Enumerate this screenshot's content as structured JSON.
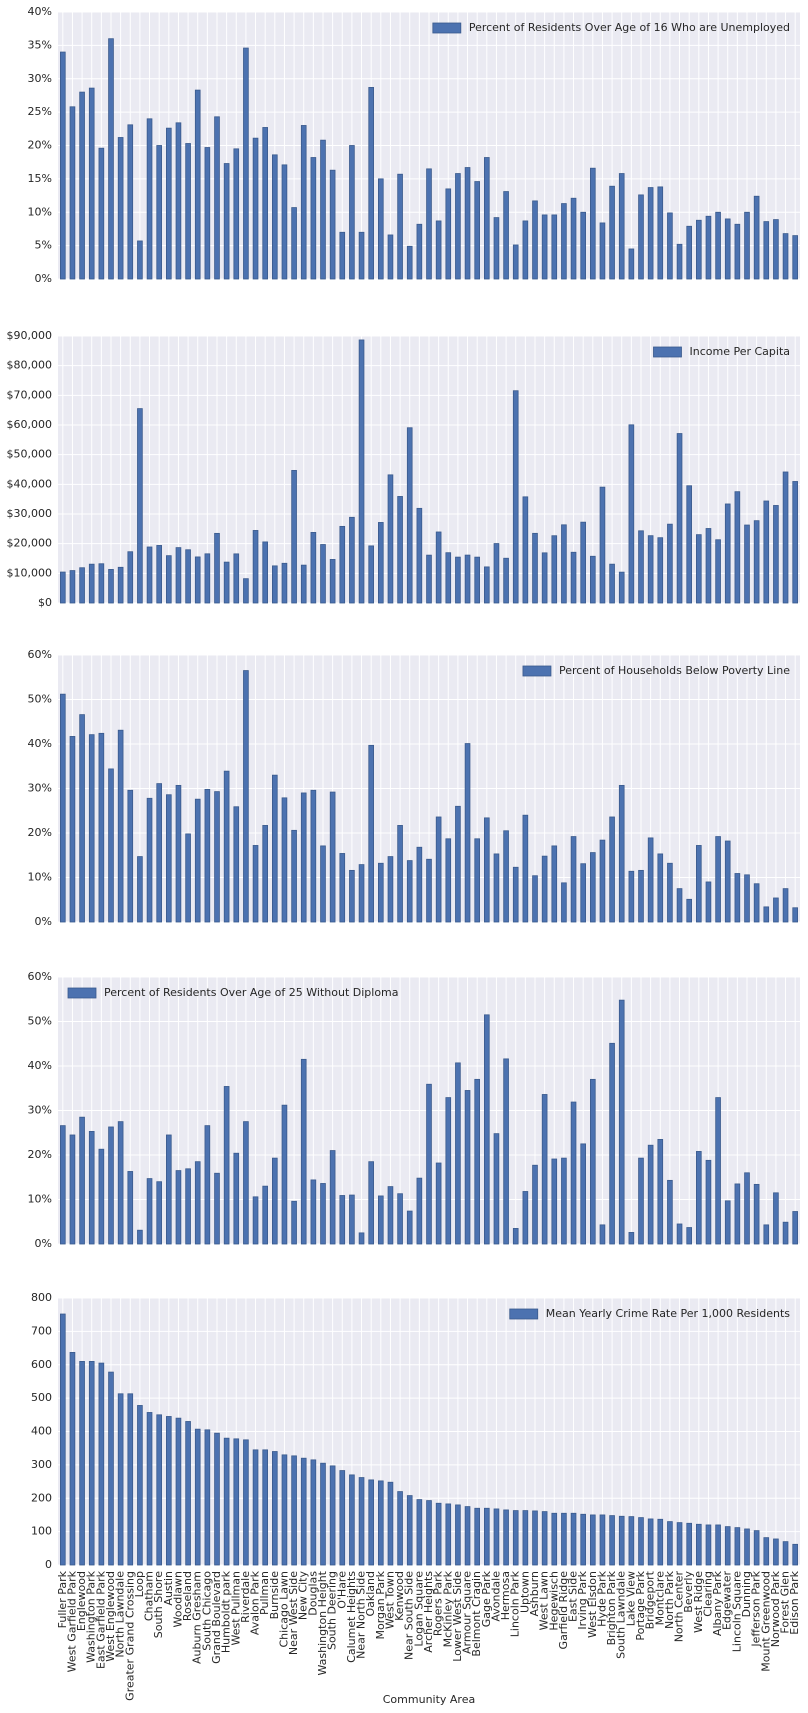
{
  "chart_data": [
    {
      "type": "bar",
      "series": [
        {
          "name": "Percent of Residents Over Age of 16 Who are Unemployed",
          "color": "#4c72b0",
          "values": [
            34,
            25.8,
            28,
            28.6,
            19.6,
            36,
            21.2,
            23.1,
            5.7,
            24,
            20,
            22.6,
            23.4,
            20.3,
            28.3,
            19.7,
            24.3,
            17.3,
            19.5,
            34.6,
            21.1,
            22.7,
            18.6,
            17.1,
            10.7,
            23,
            18.2,
            20.8,
            16.3,
            7,
            20,
            7,
            28.7,
            15,
            6.6,
            15.7,
            4.9,
            8.2,
            16.5,
            8.7,
            13.5,
            15.8,
            16.7,
            14.6,
            18.2,
            9.2,
            13.1,
            5.1,
            8.7,
            11.7,
            9.6,
            9.6,
            11.3,
            12.1,
            10,
            16.6,
            8.4,
            13.9,
            15.8,
            4.5,
            12.6,
            13.7,
            13.8,
            9.9,
            5.2,
            7.9,
            8.8,
            9.4,
            10,
            9,
            8.2,
            10,
            12.4,
            8.6,
            8.9,
            6.8,
            6.5
          ]
        }
      ],
      "ylim": [
        0,
        40
      ],
      "yticks": [
        {
          "value": 0,
          "label": "0%"
        },
        {
          "value": 5,
          "label": "5%"
        },
        {
          "value": 10,
          "label": "10%"
        },
        {
          "value": 15,
          "label": "15%"
        },
        {
          "value": 20,
          "label": "20%"
        },
        {
          "value": 25,
          "label": "25%"
        },
        {
          "value": 30,
          "label": "30%"
        },
        {
          "value": 35,
          "label": "35%"
        },
        {
          "value": 40,
          "label": "40%"
        }
      ],
      "grid": true,
      "legend": "upper right"
    },
    {
      "type": "bar",
      "series": [
        {
          "name": "Income Per Capita",
          "color": "#4c72b0",
          "values": [
            10432,
            10934,
            11888,
            13087,
            13231,
            11317,
            12034,
            17285,
            65526,
            18881,
            19398,
            15957,
            18672,
            17949,
            15528,
            16579,
            23472,
            13781,
            16563,
            8201,
            24454,
            20588,
            12515,
            13385,
            44689,
            12765,
            23791,
            19713,
            14685,
            25828,
            28887,
            88669,
            19252,
            27149,
            43198,
            35911,
            59077,
            31908,
            16134,
            23939,
            16954,
            15467,
            16148,
            15461,
            12171,
            20040,
            15089,
            71551,
            35787,
            23482,
            16907,
            22677,
            26353,
            17104,
            27249,
            15754,
            39056,
            13089,
            10402,
            60058,
            24336,
            22694,
            22014,
            26576,
            57123,
            39523,
            23040,
            25113,
            21323,
            33385,
            37524,
            26282,
            27751,
            34381,
            32875,
            44164,
            40959
          ]
        }
      ],
      "ylim": [
        0,
        90000
      ],
      "yticks": [
        {
          "value": 0,
          "label": "$0"
        },
        {
          "value": 10000,
          "label": "$10,000"
        },
        {
          "value": 20000,
          "label": "$20,000"
        },
        {
          "value": 30000,
          "label": "$30,000"
        },
        {
          "value": 40000,
          "label": "$40,000"
        },
        {
          "value": 50000,
          "label": "$50,000"
        },
        {
          "value": 60000,
          "label": "$60,000"
        },
        {
          "value": 70000,
          "label": "$70,000"
        },
        {
          "value": 80000,
          "label": "$80,000"
        },
        {
          "value": 90000,
          "label": "$90,000"
        }
      ],
      "grid": true,
      "legend": "upper right"
    },
    {
      "type": "bar",
      "series": [
        {
          "name": "Percent of Households Below Poverty Line",
          "color": "#4c72b0",
          "values": [
            51.2,
            41.7,
            46.6,
            42.1,
            42.4,
            34.4,
            43.1,
            29.6,
            14.7,
            27.8,
            31.1,
            28.6,
            30.7,
            19.8,
            27.6,
            29.8,
            29.3,
            33.9,
            25.9,
            56.5,
            17.2,
            21.7,
            33,
            27.9,
            20.6,
            29,
            29.6,
            17.1,
            29.2,
            15.4,
            11.6,
            12.9,
            39.7,
            13.2,
            14.7,
            21.7,
            13.8,
            16.8,
            14.1,
            23.6,
            18.7,
            26,
            40.1,
            18.7,
            23.4,
            15.3,
            20.5,
            12.3,
            24,
            10.4,
            14.8,
            17.1,
            8.8,
            19.2,
            13.1,
            15.6,
            18.4,
            23.6,
            30.7,
            11.4,
            11.6,
            18.9,
            15.3,
            13.2,
            7.5,
            5.1,
            17.2,
            9,
            19.2,
            18.2,
            10.9,
            10.6,
            8.6,
            3.4,
            5.4,
            7.5,
            3.2
          ]
        }
      ],
      "ylim": [
        0,
        60
      ],
      "yticks": [
        {
          "value": 0,
          "label": "0%"
        },
        {
          "value": 10,
          "label": "10%"
        },
        {
          "value": 20,
          "label": "20%"
        },
        {
          "value": 30,
          "label": "30%"
        },
        {
          "value": 40,
          "label": "40%"
        },
        {
          "value": 50,
          "label": "50%"
        },
        {
          "value": 60,
          "label": "60%"
        }
      ],
      "grid": true,
      "legend": "upper right"
    },
    {
      "type": "bar",
      "series": [
        {
          "name": "Percent of Residents Over Age of 25 Without Diploma",
          "color": "#4c72b0",
          "values": [
            26.6,
            24.5,
            28.5,
            25.3,
            21.3,
            26.3,
            27.5,
            16.3,
            3.1,
            14.7,
            14,
            24.5,
            16.5,
            16.9,
            18.5,
            26.6,
            15.9,
            35.4,
            20.4,
            27.5,
            10.6,
            13,
            19.3,
            31.2,
            9.6,
            41.5,
            14.4,
            13.6,
            21,
            10.9,
            11,
            2.5,
            18.5,
            10.8,
            12.9,
            11.3,
            7.4,
            14.8,
            35.9,
            18.2,
            32.9,
            40.7,
            34.5,
            37,
            51.5,
            24.8,
            41.6,
            3.5,
            11.8,
            17.7,
            33.6,
            19.1,
            19.3,
            31.9,
            22.5,
            37,
            4.3,
            45.1,
            54.8,
            2.6,
            19.3,
            22.2,
            23.5,
            14.3,
            4.5,
            3.7,
            20.8,
            18.8,
            32.9,
            9.7,
            13.5,
            16,
            13.4,
            4.3,
            11.5,
            4.9,
            7.3
          ]
        }
      ],
      "ylim": [
        0,
        60
      ],
      "yticks": [
        {
          "value": 0,
          "label": "0%"
        },
        {
          "value": 10,
          "label": "10%"
        },
        {
          "value": 20,
          "label": "20%"
        },
        {
          "value": 30,
          "label": "30%"
        },
        {
          "value": 40,
          "label": "40%"
        },
        {
          "value": 50,
          "label": "50%"
        },
        {
          "value": 60,
          "label": "60%"
        }
      ],
      "grid": true,
      "legend": "upper left"
    },
    {
      "type": "bar",
      "xlabel": "Community Area",
      "categories": [
        "Fuller Park",
        "West Garfield Park",
        "Englewood",
        "Washington Park",
        "East Garfield Park",
        "West Englewood",
        "North Lawndale",
        "Greater Grand Crossing",
        "Loop",
        "Chatham",
        "South Shore",
        "Austin",
        "Woodlawn",
        "Roseland",
        "Auburn Gresham",
        "South Chicago",
        "Grand Boulevard",
        "Humboldt park",
        "West Pullman",
        "Riverdale",
        "Avalon Park",
        "Pullman",
        "Burnside",
        "Chicago Lawn",
        "Near West Side",
        "New City",
        "Douglas",
        "Washington Height",
        "South Deering",
        "O'Hare",
        "Calumet Heights",
        "Near North Side",
        "Oakland",
        "Morgan Park",
        "West Town",
        "Kenwood",
        "Near South Side",
        "Logan Square",
        "Archer Heights",
        "Rogers Park",
        "McKinley Park",
        "Lower West Side",
        "Armour Square",
        "Belmont Cragin",
        "Gage Park",
        "Avondale",
        "Hermosa",
        "Lincoln Park",
        "Uptown",
        "Ashburn",
        "West Lawn",
        "Hegewisch",
        "Garfield Ridge",
        "East Side",
        "Irving Park",
        "West Elsdon",
        "Hyde Park",
        "Brighton Park",
        "South Lawndale",
        "Lake View",
        "Portage Park",
        "Bridgeport",
        "Montclare",
        "North Park",
        "North Center",
        "Beverly",
        "West Ridge",
        "Clearing",
        "Albany Park",
        "Edgewater",
        "Lincoln Square",
        "Dunning",
        "Jefferson Park",
        "Mount Greenwood",
        "Norwood Park",
        "Forest Glen",
        "Edison Park"
      ],
      "series": [
        {
          "name": "Mean Yearly Crime Rate Per 1,000 Residents",
          "color": "#4c72b0",
          "values": [
            752,
            637,
            610,
            610,
            605,
            578,
            513,
            513,
            478,
            457,
            450,
            445,
            440,
            430,
            407,
            405,
            395,
            380,
            378,
            375,
            345,
            345,
            340,
            330,
            327,
            320,
            315,
            305,
            297,
            283,
            270,
            262,
            255,
            252,
            248,
            220,
            208,
            196,
            193,
            185,
            183,
            180,
            175,
            170,
            170,
            168,
            165,
            163,
            163,
            162,
            160,
            155,
            155,
            155,
            152,
            150,
            150,
            148,
            146,
            145,
            142,
            138,
            137,
            130,
            127,
            125,
            122,
            120,
            120,
            115,
            112,
            108,
            103,
            82,
            78,
            70,
            62
          ]
        }
      ],
      "ylim": [
        0,
        800
      ],
      "yticks": [
        0,
        100,
        200,
        300,
        400,
        500,
        600,
        700,
        800
      ],
      "grid": true,
      "legend": "upper right"
    }
  ]
}
